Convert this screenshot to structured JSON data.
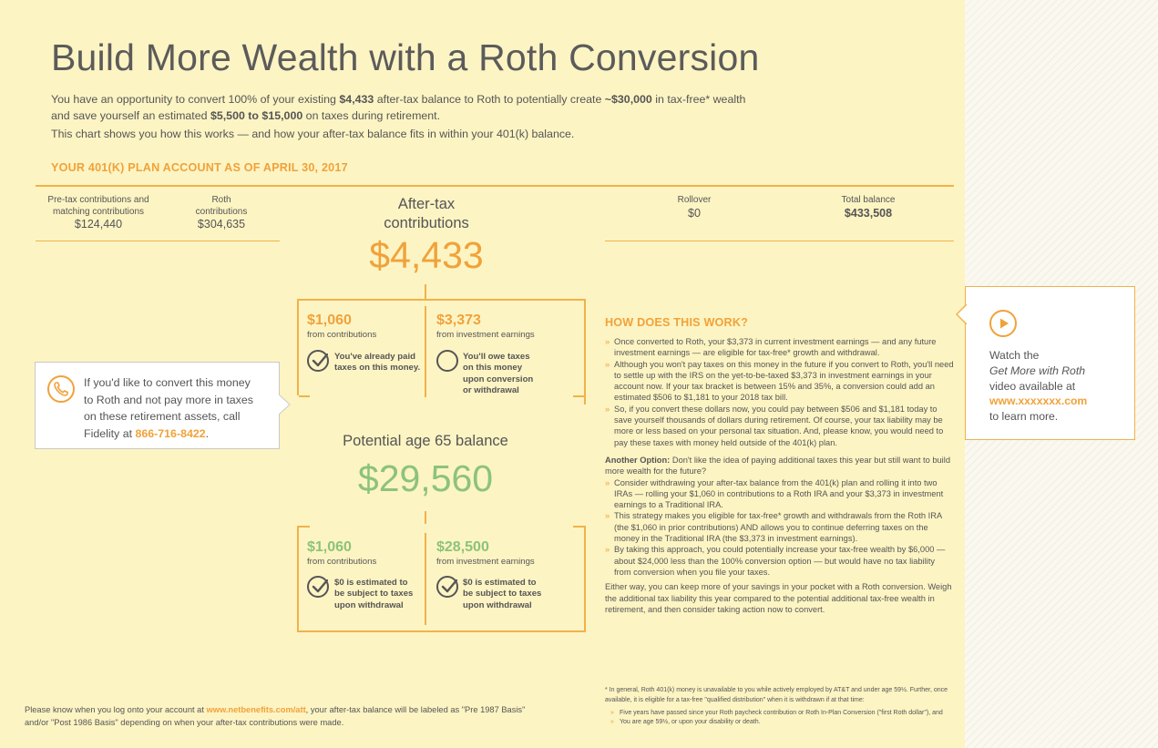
{
  "title": "Build More Wealth  with a Roth Conversion",
  "intro": {
    "p1_a": "You have an opportunity to convert 100% of your existing ",
    "p1_b": "$4,433",
    "p1_c": " after-tax balance to Roth to potentially create ",
    "p1_d": "~$30,000",
    "p1_e": " in tax-free* wealth",
    "p1_f": "and save yourself an estimated ",
    "p1_g": "$5,500 to $15,000",
    "p1_h": " on taxes during retirement.",
    "p2": "This chart shows you how this works — and how your after-tax balance fits in within your 401(k) balance."
  },
  "account_heading": "YOUR 401(K) PLAN ACCOUNT AS OF APRIL 30, 2017",
  "balances": {
    "pretax": {
      "label1": "Pre-tax contributions and",
      "label2": "matching contributions",
      "value": "$124,440"
    },
    "roth": {
      "label1": "Roth",
      "label2": "contributions",
      "value": "$304,635"
    },
    "aftertax": {
      "label1": "After-tax",
      "label2": "contributions",
      "value": "$4,433"
    },
    "rollover": {
      "label": "Rollover",
      "value": "$0"
    },
    "total": {
      "label": "Total balance",
      "value": "$433,508"
    }
  },
  "current_split": {
    "left": {
      "amount": "$1,060",
      "from": "from contributions",
      "note1": "You've already paid",
      "note2": "taxes on this money.",
      "checked": true
    },
    "right": {
      "amount": "$3,373",
      "from": "from investment earnings",
      "note1": "You'll owe taxes",
      "note2": "on this money",
      "note3": "upon conversion",
      "note4": "or withdrawal",
      "checked": false
    }
  },
  "age65": {
    "label": "Potential age 65 balance",
    "value": "$29,560"
  },
  "future_split": {
    "left": {
      "amount": "$1,060",
      "from": "from contributions",
      "note1": "$0 is estimated to",
      "note2": "be subject to taxes",
      "note3": "upon withdrawal"
    },
    "right": {
      "amount": "$28,500",
      "from": "from investment earnings",
      "note1": "$0 is estimated to",
      "note2": "be subject to taxes",
      "note3": "upon withdrawal"
    }
  },
  "call_box": {
    "line1": "If you'd like to convert this money",
    "line2": "to Roth and not pay more in taxes",
    "line3": "on these retirement assets, call",
    "line4_a": "Fidelity at ",
    "phone": "866-716-8422",
    "line4_b": "."
  },
  "how": {
    "heading": "HOW DOES THIS WORK?",
    "b1": "Once converted to Roth, your $3,373 in current investment earnings — and any future investment earnings — are eligible for tax-free* growth and withdrawal.",
    "b2": "Although you won't pay taxes on this money in the future if you convert to Roth, you'll need to settle up with the IRS on the yet-to-be-taxed $3,373 in investment earnings in your account now. If your tax bracket is between 15% and 35%, a conversion could add an estimated $506 to $1,181 to your 2018 tax bill.",
    "b3": "So, if you convert these dollars now, you could pay between $506 and $1,181 today to save yourself thousands of dollars during retirement. Of course, your tax liability may be more or less based on your personal tax situation. And, please know, you would need to pay these taxes with money held outside of the 401(k) plan.",
    "option_label": "Another Option:",
    "option_text": " Don't like the idea of paying additional taxes this year but still want to build more wealth for the future?",
    "b4": "Consider withdrawing your after-tax balance from the 401(k) plan and rolling it into two IRAs — rolling your $1,060 in contributions to a Roth IRA and your $3,373 in investment earnings to a Traditional IRA.",
    "b5": "This strategy makes you eligible for tax-free* growth and withdrawals from the Roth IRA (the $1,060 in prior contributions) AND allows you to continue deferring taxes on the money in the Traditional IRA (the $3,373 in investment earnings).",
    "b6": "By taking this approach, you could potentially increase your tax-free wealth by $6,000 — about $24,000 less than the 100% conversion option — but would have no tax liability from conversion when you file your taxes.",
    "closing": "Either way, you can keep more of your savings in your pocket with a Roth conversion. Weigh the additional tax liability this year compared to the potential additional tax-free wealth in retirement, and then consider taking action now to convert."
  },
  "video_box": {
    "line1": "Watch the",
    "line2": "Get More with Roth",
    "line3": "video available at",
    "link": "www.xxxxxxx.com",
    "line4": "to learn more."
  },
  "footer": {
    "line1_a": "Please know when you log onto your account at ",
    "link": "www.netbenefits.com/att",
    "line1_b": ", your after-tax balance will be labeled as \"Pre 1987 Basis\"",
    "line2": "and/or \"Post 1986 Basis\" depending on when your after-tax contributions were made."
  },
  "footnote": {
    "line1": "* In general, Roth 401(k) money is unavailable to you while actively employed by AT&T and under age 59½. Further, once",
    "line2": "available, it is eligible for a tax-free \"qualified distribution\" when it is withdrawn if at that time:",
    "b1": "Five years have passed since your Roth paycheck contribution or Roth In-Plan Conversion (\"first Roth dollar\"), and",
    "b2": "You are age 59½, or upon your disability or death."
  },
  "colors": {
    "accent": "#f0a23a",
    "green": "#8cc37a",
    "background": "#fdf4c3"
  },
  "icons": [
    "phone-icon",
    "check-icon",
    "empty-circle-icon",
    "play-icon"
  ]
}
